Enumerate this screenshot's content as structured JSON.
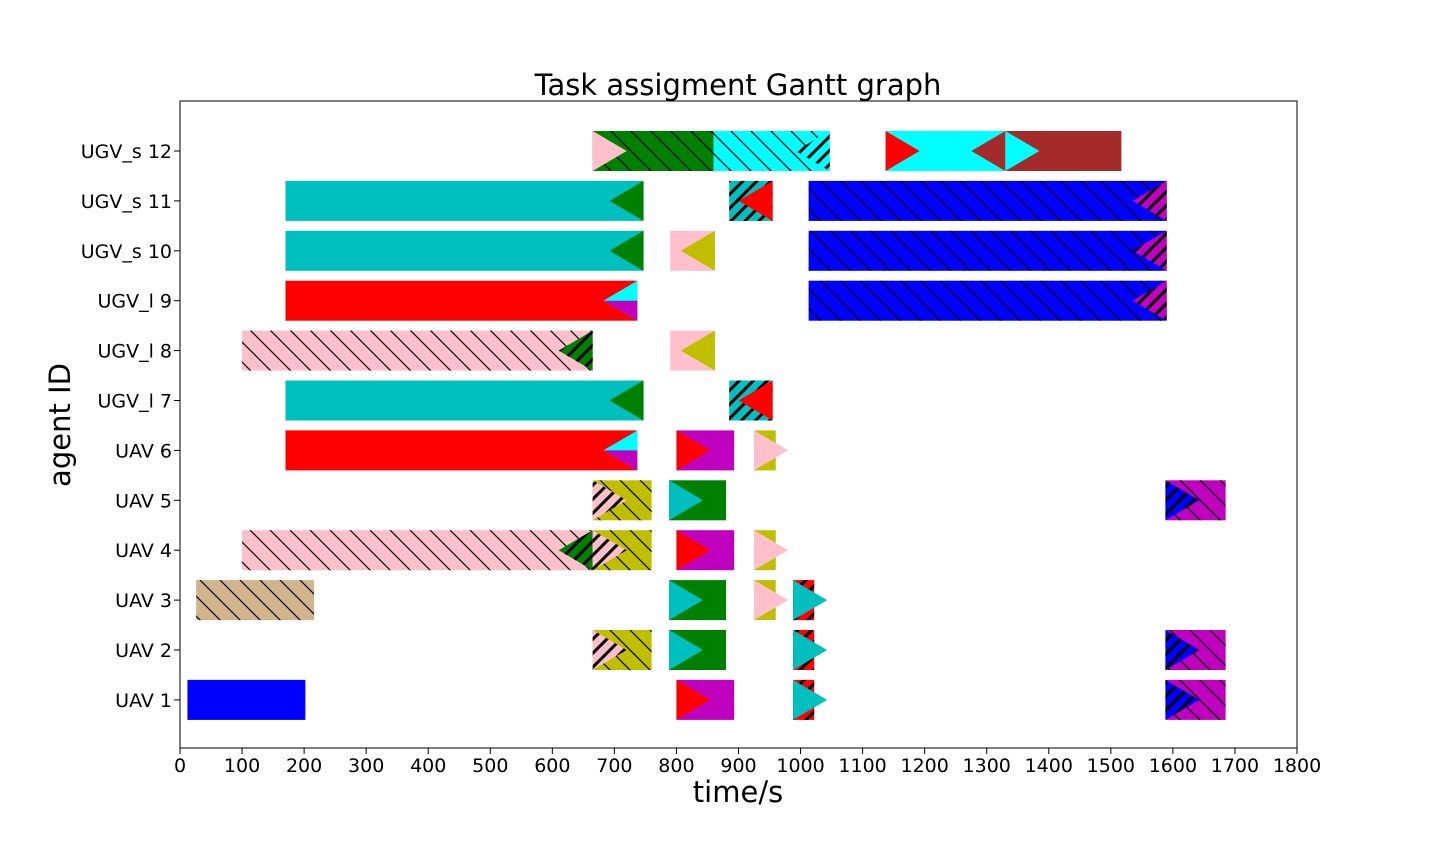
{
  "chart_data": {
    "type": "gantt",
    "title": "Task assigment Gantt graph",
    "xlabel": "time/s",
    "ylabel": "agent ID",
    "xlim": [
      0,
      1800
    ],
    "x_ticks": [
      0,
      100,
      200,
      300,
      400,
      500,
      600,
      700,
      800,
      900,
      1000,
      1100,
      1200,
      1300,
      1400,
      1500,
      1600,
      1700,
      1800
    ],
    "agents": [
      "UAV 1",
      "UAV 2",
      "UAV 3",
      "UAV 4",
      "UAV 5",
      "UAV 6",
      "UGV_l 7",
      "UGV_l 8",
      "UGV_l 9",
      "UGV_s 10",
      "UGV_s 11",
      "UGV_s 12"
    ],
    "grid": false,
    "colors": {
      "blue": "#0000ff",
      "red": "#ff0000",
      "teal": "#00bfbf",
      "green": "#008000",
      "pink": "#ffc0cb",
      "olive": "#bfbf00",
      "magenta": "#bf00bf",
      "cyan": "#00ffff",
      "tan": "#d2b48c",
      "brown": "#a52a2a"
    },
    "tasks": [
      {
        "agent": "UAV 1",
        "start": 12,
        "end": 202,
        "color": "blue"
      },
      {
        "agent": "UAV 1",
        "start": 800,
        "end": 893,
        "color": "magenta",
        "marker": "red",
        "dir": "right"
      },
      {
        "agent": "UAV 1",
        "start": 988,
        "end": 1022,
        "color": "red",
        "marker": "teal",
        "dir": "right",
        "hatch": "bold"
      },
      {
        "agent": "UAV 1",
        "start": 1588,
        "end": 1685,
        "color": "magenta",
        "marker": "blue",
        "dir": "right",
        "hatch": "light",
        "hatch2": "bold"
      },
      {
        "agent": "UAV 2",
        "start": 665,
        "end": 760,
        "color": "olive",
        "marker": "pink",
        "dir": "right",
        "hatch": "light",
        "hatch2": "bold"
      },
      {
        "agent": "UAV 2",
        "start": 788,
        "end": 880,
        "color": "green",
        "marker": "teal",
        "dir": "right"
      },
      {
        "agent": "UAV 2",
        "start": 988,
        "end": 1022,
        "color": "red",
        "marker": "teal",
        "dir": "right",
        "hatch": "bold"
      },
      {
        "agent": "UAV 2",
        "start": 1588,
        "end": 1685,
        "color": "magenta",
        "marker": "blue",
        "dir": "right",
        "hatch": "light",
        "hatch2": "bold"
      },
      {
        "agent": "UAV 3",
        "start": 26,
        "end": 216,
        "color": "tan",
        "hatch": "light"
      },
      {
        "agent": "UAV 3",
        "start": 788,
        "end": 880,
        "color": "green",
        "marker": "teal",
        "dir": "right"
      },
      {
        "agent": "UAV 3",
        "start": 925,
        "end": 960,
        "color": "olive",
        "marker": "pink",
        "dir": "right"
      },
      {
        "agent": "UAV 3",
        "start": 988,
        "end": 1022,
        "color": "red",
        "marker": "teal",
        "dir": "right",
        "hatch": "bold"
      },
      {
        "agent": "UAV 4",
        "start": 100,
        "end": 665,
        "color": "pink",
        "marker": "green",
        "dir": "left",
        "hatch": "light",
        "hatch2": "bold"
      },
      {
        "agent": "UAV 4",
        "start": 665,
        "end": 760,
        "color": "olive",
        "marker": "pink",
        "dir": "right",
        "hatch": "light",
        "hatch2": "bold"
      },
      {
        "agent": "UAV 4",
        "start": 800,
        "end": 893,
        "color": "magenta",
        "marker": "red",
        "dir": "right"
      },
      {
        "agent": "UAV 4",
        "start": 925,
        "end": 960,
        "color": "olive",
        "marker": "pink",
        "dir": "right"
      },
      {
        "agent": "UAV 5",
        "start": 665,
        "end": 760,
        "color": "olive",
        "marker": "pink",
        "dir": "right",
        "hatch": "light",
        "hatch2": "bold"
      },
      {
        "agent": "UAV 5",
        "start": 788,
        "end": 880,
        "color": "green",
        "marker": "teal",
        "dir": "right"
      },
      {
        "agent": "UAV 5",
        "start": 1588,
        "end": 1685,
        "color": "magenta",
        "marker": "blue",
        "dir": "right",
        "hatch": "light",
        "hatch2": "bold"
      },
      {
        "agent": "UAV 6",
        "start": 170,
        "end": 737,
        "color": "red",
        "marker": "cyan",
        "marker2": "magenta",
        "dir": "left"
      },
      {
        "agent": "UAV 6",
        "start": 800,
        "end": 893,
        "color": "magenta",
        "marker": "red",
        "dir": "right"
      },
      {
        "agent": "UAV 6",
        "start": 925,
        "end": 960,
        "color": "olive",
        "marker": "pink",
        "dir": "right"
      },
      {
        "agent": "UGV_l 7",
        "start": 170,
        "end": 747,
        "color": "teal",
        "marker": "green",
        "dir": "left"
      },
      {
        "agent": "UGV_l 7",
        "start": 885,
        "end": 955,
        "color": "teal",
        "marker": "red",
        "dir": "left",
        "hatch": "bold"
      },
      {
        "agent": "UGV_l 8",
        "start": 100,
        "end": 665,
        "color": "pink",
        "marker": "green",
        "dir": "left",
        "hatch": "light",
        "hatch2": "bold"
      },
      {
        "agent": "UGV_l 8",
        "start": 790,
        "end": 862,
        "color": "pink",
        "marker": "olive",
        "dir": "left"
      },
      {
        "agent": "UGV_l 9",
        "start": 170,
        "end": 737,
        "color": "red",
        "marker": "cyan",
        "marker2": "magenta",
        "dir": "left"
      },
      {
        "agent": "UGV_l 9",
        "start": 1013,
        "end": 1590,
        "color": "blue",
        "marker": "magenta",
        "dir": "left",
        "hatch": "light",
        "hatch2": "bold"
      },
      {
        "agent": "UGV_s 10",
        "start": 170,
        "end": 747,
        "color": "teal",
        "marker": "green",
        "dir": "left"
      },
      {
        "agent": "UGV_s 10",
        "start": 790,
        "end": 862,
        "color": "pink",
        "marker": "olive",
        "dir": "left"
      },
      {
        "agent": "UGV_s 10",
        "start": 1013,
        "end": 1590,
        "color": "blue",
        "marker": "magenta",
        "dir": "left",
        "hatch": "light",
        "hatch2": "bold"
      },
      {
        "agent": "UGV_s 11",
        "start": 170,
        "end": 747,
        "color": "teal",
        "marker": "green",
        "dir": "left"
      },
      {
        "agent": "UGV_s 11",
        "start": 885,
        "end": 955,
        "color": "teal",
        "marker": "red",
        "dir": "left",
        "hatch": "bold"
      },
      {
        "agent": "UGV_s 11",
        "start": 1013,
        "end": 1590,
        "color": "blue",
        "marker": "magenta",
        "dir": "left",
        "hatch": "light",
        "hatch2": "bold"
      },
      {
        "agent": "UGV_s 12",
        "start": 665,
        "end": 860,
        "color": "green",
        "marker": "pink",
        "dir": "right",
        "hatch": "light"
      },
      {
        "agent": "UGV_s 12",
        "start": 860,
        "end": 1047,
        "color": "cyan",
        "marker": "cyan",
        "dir": "left",
        "hatch": "light",
        "hatch2": "bold"
      },
      {
        "agent": "UGV_s 12",
        "start": 1137,
        "end": 1330,
        "color": "cyan",
        "marker": "red",
        "dir": "right",
        "marker3": "brown"
      },
      {
        "agent": "UGV_s 12",
        "start": 1330,
        "end": 1517,
        "color": "brown",
        "marker": "cyan",
        "dir": "right"
      }
    ]
  }
}
